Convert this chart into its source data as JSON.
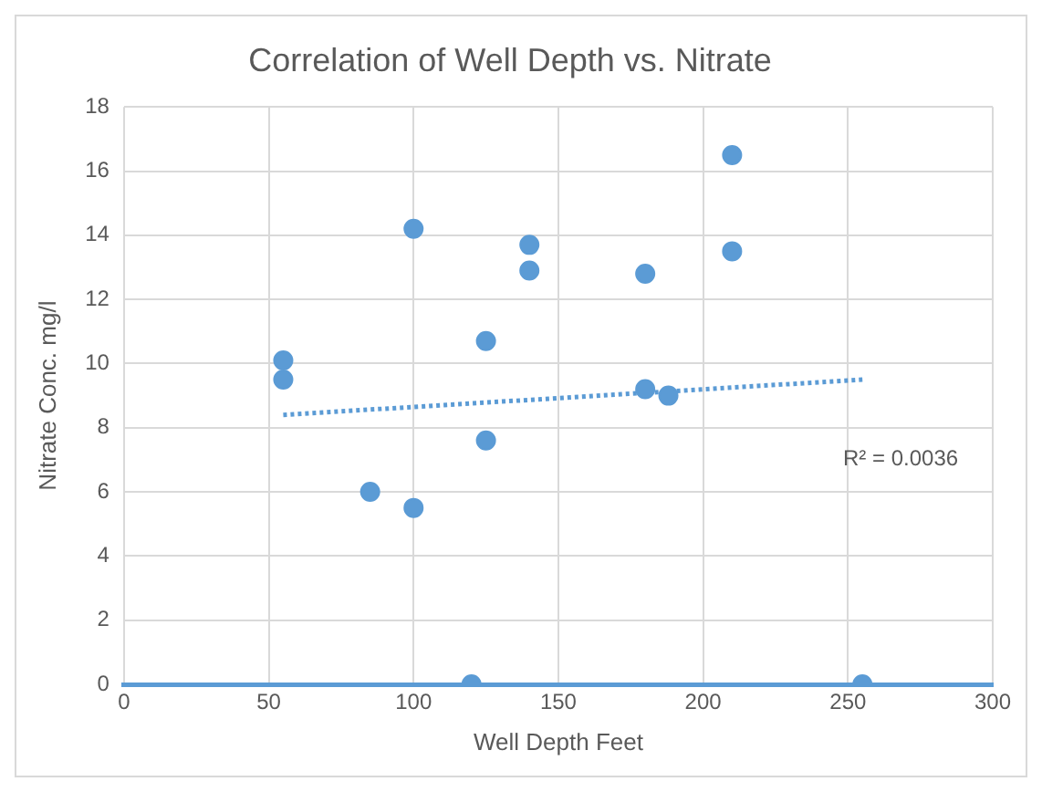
{
  "chart_data": {
    "type": "scatter",
    "title": "Correlation of Well Depth vs. Nitrate",
    "xlabel": "Well Depth Feet",
    "ylabel": "Nitrate Conc. mg/l",
    "series": [
      {
        "type": "scatter",
        "color": "#5b9bd5",
        "x": [
          55,
          55,
          85,
          100,
          100,
          120,
          125,
          125,
          140,
          140,
          180,
          180,
          188,
          210,
          210,
          255
        ],
        "values": [
          10.1,
          9.5,
          6,
          14.2,
          5.5,
          0,
          10.7,
          7.6,
          13.7,
          12.9,
          12.8,
          9.2,
          9,
          16.5,
          13.5,
          0
        ]
      },
      {
        "type": "line",
        "color": "#5b9bd5",
        "line_style": "dotted",
        "marker": "none",
        "x": [
          55,
          255
        ],
        "values": [
          8.4,
          9.5
        ]
      }
    ],
    "xlim": [
      0,
      300
    ],
    "xticks": [
      0,
      50,
      100,
      150,
      200,
      250,
      300
    ],
    "ylim": [
      0,
      18
    ],
    "yticks": [
      0,
      2,
      4,
      6,
      8,
      10,
      12,
      14,
      16,
      18
    ],
    "grid": true,
    "legend": false,
    "marker": "circle",
    "annotations": [
      "R² = 0.0036"
    ]
  }
}
